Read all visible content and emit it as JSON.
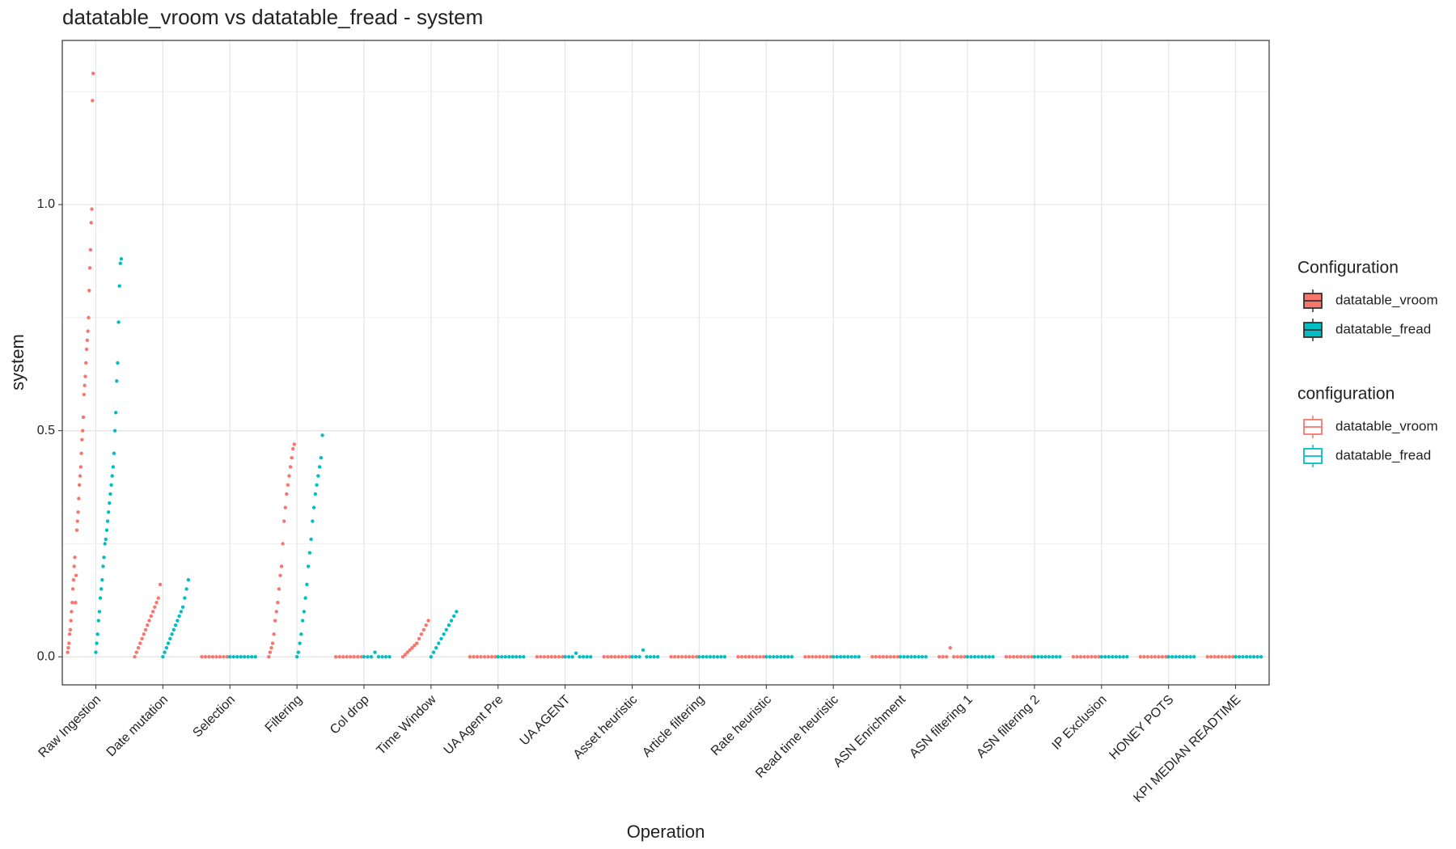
{
  "chart_data": {
    "type": "strip",
    "title": "datatable_vroom vs datatable_fread - system",
    "x_label": "Operation",
    "y_label": "system",
    "categories": [
      "Raw Ingestion",
      "Date mutation",
      "Selection",
      "Filtering",
      "Col drop",
      "Time Window",
      "UA Agent Pre",
      "UA AGENT",
      "Asset heuristic",
      "Article filtering",
      "Rate heuristic",
      "Read time heuristic",
      "ASN Enrichment",
      "ASN filtering 1",
      "ASN filtering 2",
      "IP Exclusion",
      "HONEY POTS",
      "KPI MEDIAN READTIME"
    ],
    "series": [
      {
        "name": "datatable_vroom",
        "color": "#F8766D",
        "values": [
          [
            0.01,
            0.02,
            0.03,
            0.05,
            0.06,
            0.08,
            0.1,
            0.12,
            0.15,
            0.17,
            0.2,
            0.22,
            0.12,
            0.18,
            0.28,
            0.3,
            0.32,
            0.35,
            0.38,
            0.4,
            0.42,
            0.45,
            0.48,
            0.5,
            0.53,
            0.58,
            0.6,
            0.62,
            0.65,
            0.68,
            0.7,
            0.72,
            0.75,
            0.81,
            0.86,
            0.9,
            0.96,
            0.99,
            1.23,
            1.29
          ],
          [
            0,
            0.01,
            0.02,
            0.03,
            0.04,
            0.05,
            0.06,
            0.07,
            0.08,
            0.09,
            0.1,
            0.11,
            0.12,
            0.13,
            0.16
          ],
          [
            0,
            0,
            0,
            0,
            0,
            0,
            0,
            0
          ],
          [
            0,
            0.01,
            0.02,
            0.03,
            0.05,
            0.08,
            0.1,
            0.12,
            0.15,
            0.18,
            0.2,
            0.25,
            0.3,
            0.33,
            0.36,
            0.38,
            0.4,
            0.42,
            0.44,
            0.46,
            0.47
          ],
          [
            0,
            0,
            0,
            0,
            0,
            0,
            0,
            0
          ],
          [
            0,
            0.005,
            0.01,
            0.015,
            0.02,
            0.025,
            0.03,
            0.04,
            0.05,
            0.06,
            0.07,
            0.08
          ],
          [
            0,
            0,
            0,
            0,
            0,
            0,
            0,
            0
          ],
          [
            0,
            0,
            0,
            0,
            0,
            0,
            0,
            0
          ],
          [
            0,
            0,
            0,
            0,
            0,
            0,
            0,
            0
          ],
          [
            0,
            0,
            0,
            0,
            0,
            0,
            0,
            0
          ],
          [
            0,
            0,
            0,
            0,
            0,
            0,
            0,
            0
          ],
          [
            0,
            0,
            0,
            0,
            0,
            0,
            0,
            0
          ],
          [
            0,
            0,
            0,
            0,
            0,
            0,
            0,
            0
          ],
          [
            0,
            0,
            0,
            0.02,
            0,
            0,
            0,
            0
          ],
          [
            0,
            0,
            0,
            0,
            0,
            0,
            0,
            0
          ],
          [
            0,
            0,
            0,
            0,
            0,
            0,
            0,
            0
          ],
          [
            0,
            0,
            0,
            0,
            0,
            0,
            0,
            0
          ],
          [
            0,
            0,
            0,
            0,
            0,
            0,
            0,
            0
          ]
        ]
      },
      {
        "name": "datatable_fread",
        "color": "#00BFC4",
        "values": [
          [
            0.01,
            0.03,
            0.05,
            0.08,
            0.1,
            0.13,
            0.15,
            0.17,
            0.2,
            0.22,
            0.25,
            0.26,
            0.28,
            0.3,
            0.32,
            0.34,
            0.36,
            0.38,
            0.4,
            0.42,
            0.45,
            0.5,
            0.54,
            0.61,
            0.65,
            0.74,
            0.82,
            0.87,
            0.88
          ],
          [
            0,
            0.01,
            0.02,
            0.03,
            0.04,
            0.05,
            0.06,
            0.07,
            0.08,
            0.09,
            0.1,
            0.11,
            0.13,
            0.15,
            0.17
          ],
          [
            0,
            0,
            0,
            0,
            0,
            0,
            0,
            0
          ],
          [
            0,
            0.01,
            0.03,
            0.05,
            0.08,
            0.1,
            0.13,
            0.16,
            0.2,
            0.23,
            0.26,
            0.3,
            0.33,
            0.36,
            0.38,
            0.4,
            0.42,
            0.44,
            0.49
          ],
          [
            0,
            0,
            0,
            0.01,
            0,
            0,
            0,
            0
          ],
          [
            0,
            0.01,
            0.02,
            0.03,
            0.04,
            0.05,
            0.06,
            0.07,
            0.08,
            0.09,
            0.1
          ],
          [
            0,
            0,
            0,
            0,
            0,
            0,
            0,
            0
          ],
          [
            0,
            0,
            0,
            0.008,
            0,
            0,
            0,
            0
          ],
          [
            0,
            0,
            0,
            0.015,
            0,
            0,
            0,
            0
          ],
          [
            0,
            0,
            0,
            0,
            0,
            0,
            0,
            0
          ],
          [
            0,
            0,
            0,
            0,
            0,
            0,
            0,
            0
          ],
          [
            0,
            0,
            0,
            0,
            0,
            0,
            0,
            0
          ],
          [
            0,
            0,
            0,
            0,
            0,
            0,
            0,
            0
          ],
          [
            0,
            0,
            0,
            0,
            0,
            0,
            0,
            0
          ],
          [
            0,
            0,
            0,
            0,
            0,
            0,
            0,
            0
          ],
          [
            0,
            0,
            0,
            0,
            0,
            0,
            0,
            0
          ],
          [
            0,
            0,
            0,
            0,
            0,
            0,
            0,
            0
          ],
          [
            0,
            0,
            0,
            0,
            0,
            0,
            0,
            0
          ]
        ]
      }
    ],
    "ylim": [
      -0.062,
      1.363
    ],
    "yticks": [
      {
        "value": 0,
        "label": "0.0"
      },
      {
        "value": 0.5,
        "label": "0.5"
      },
      {
        "value": 1.0,
        "label": "1.0"
      }
    ],
    "minor_yticks": [
      0.25,
      0.75,
      1.25
    ],
    "grid": true,
    "legend_position": "right",
    "legends": [
      {
        "title": "Configuration",
        "style": "filled"
      },
      {
        "title": "configuration",
        "style": "outline"
      }
    ]
  }
}
